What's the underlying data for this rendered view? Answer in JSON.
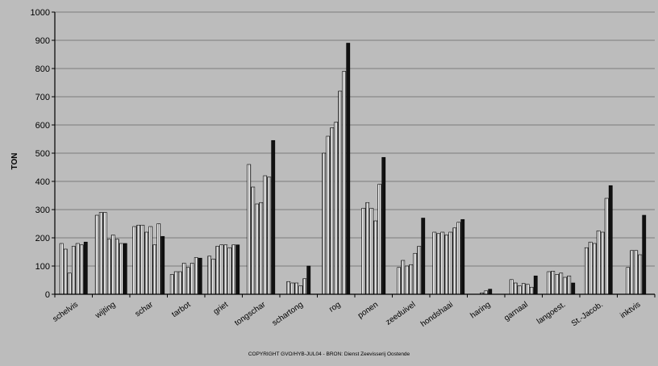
{
  "chart_data": {
    "type": "bar",
    "ylabel": "TON",
    "ylim": [
      0,
      1000
    ],
    "yticks": [
      0,
      100,
      200,
      300,
      400,
      500,
      600,
      700,
      800,
      900,
      1000
    ],
    "grid": "horizontal",
    "categories": [
      "schelvis",
      "wijting",
      "schar",
      "tarbot",
      "griet",
      "tongschar",
      "schartong",
      "rog",
      "ponen",
      "zeeduivel",
      "hondshaai",
      "haring",
      "garnaal",
      "langoest.",
      "St.-Jacob.",
      "inktvis"
    ],
    "groups": [
      {
        "category": "schelvis",
        "values": [
          180,
          160,
          75,
          170,
          180,
          175,
          185
        ]
      },
      {
        "category": "wijting",
        "values": [
          280,
          290,
          290,
          195,
          210,
          195,
          180,
          180
        ]
      },
      {
        "category": "schar",
        "values": [
          240,
          245,
          245,
          220,
          240,
          175,
          250,
          205
        ]
      },
      {
        "category": "tarbot",
        "values": [
          70,
          80,
          80,
          110,
          95,
          110,
          130,
          128
        ]
      },
      {
        "category": "griet",
        "values": [
          135,
          125,
          170,
          175,
          175,
          165,
          175,
          175
        ]
      },
      {
        "category": "tongschar",
        "values": [
          460,
          380,
          320,
          325,
          420,
          415,
          545
        ]
      },
      {
        "category": "schartong",
        "values": [
          45,
          40,
          40,
          30,
          55,
          100
        ]
      },
      {
        "category": "rog",
        "values": [
          500,
          560,
          590,
          610,
          720,
          790,
          890
        ]
      },
      {
        "category": "ponen",
        "values": [
          305,
          325,
          305,
          260,
          390,
          485
        ]
      },
      {
        "category": "zeeduivel",
        "values": [
          95,
          120,
          100,
          105,
          145,
          170,
          270
        ]
      },
      {
        "category": "hondshaai",
        "values": [
          220,
          215,
          220,
          210,
          220,
          235,
          255,
          265
        ]
      },
      {
        "category": "haring",
        "values": [
          5,
          12,
          18
        ]
      },
      {
        "category": "garnaal",
        "values": [
          52,
          40,
          30,
          38,
          35,
          25,
          65
        ]
      },
      {
        "category": "langoest.",
        "values": [
          80,
          82,
          70,
          75,
          60,
          65,
          40
        ]
      },
      {
        "category": "St.-Jacob.",
        "values": [
          165,
          185,
          180,
          225,
          220,
          340,
          385
        ]
      },
      {
        "category": "inktvis",
        "values": [
          95,
          155,
          155,
          140,
          280
        ]
      }
    ]
  },
  "footer": {
    "copyright": "COPYRIGHT GVO/HYB-JUL04 - BRON: Dienst Zeevisserij Oostende"
  },
  "colors": {
    "bar_fill": "#ffffff",
    "bar_hatch": "#8a8a8a",
    "bar_last": "#111111",
    "axis": "#000000",
    "grid": "#7c7c7c",
    "background": "#bcbcbc"
  }
}
